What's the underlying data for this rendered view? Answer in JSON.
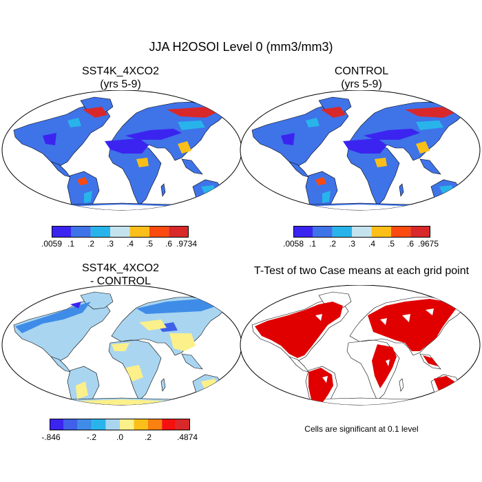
{
  "figure": {
    "title": "JJA H2OSOI Level 0 (mm3/mm3)"
  },
  "panels": {
    "top_left": {
      "title_line1": "SST4K_4XCO2",
      "title_line2": "(yrs 5-9)",
      "colorbar_labels": [
        ".0059",
        ".1",
        ".2",
        ".3",
        ".4",
        ".5",
        ".6",
        ".9734"
      ],
      "colorbar_colors": [
        "#3b24f0",
        "#3f73e8",
        "#28b4ea",
        "#c4e3ee",
        "#fcbf19",
        "#fa4a10",
        "#d8282a"
      ]
    },
    "top_right": {
      "title_line1": "CONTROL",
      "title_line2": "(yrs 5-9)",
      "colorbar_labels": [
        ".0058",
        ".1",
        ".2",
        ".3",
        ".4",
        ".5",
        ".6",
        ".9675"
      ],
      "colorbar_colors": [
        "#3b24f0",
        "#3f73e8",
        "#28b4ea",
        "#c4e3ee",
        "#fcbf19",
        "#fa4a10",
        "#d8282a"
      ]
    },
    "bottom_left": {
      "title_line1": "SST4K_4XCO2",
      "title_line2": "- CONTROL",
      "colorbar_labels": [
        "-.846",
        "-.2",
        ".0",
        ".2",
        ".4874"
      ],
      "colorbar_colors": [
        "#3b24f0",
        "#3f60e8",
        "#3f8ce8",
        "#28b4ea",
        "#a9d5f0",
        "#fcf08a",
        "#fcbf19",
        "#fa8010",
        "#f51010",
        "#d8282a"
      ]
    },
    "bottom_right": {
      "title": "T-Test of two Case means at each grid point",
      "note": "Cells are significant at 0.1 level",
      "significance_color": "#e00000"
    }
  }
}
